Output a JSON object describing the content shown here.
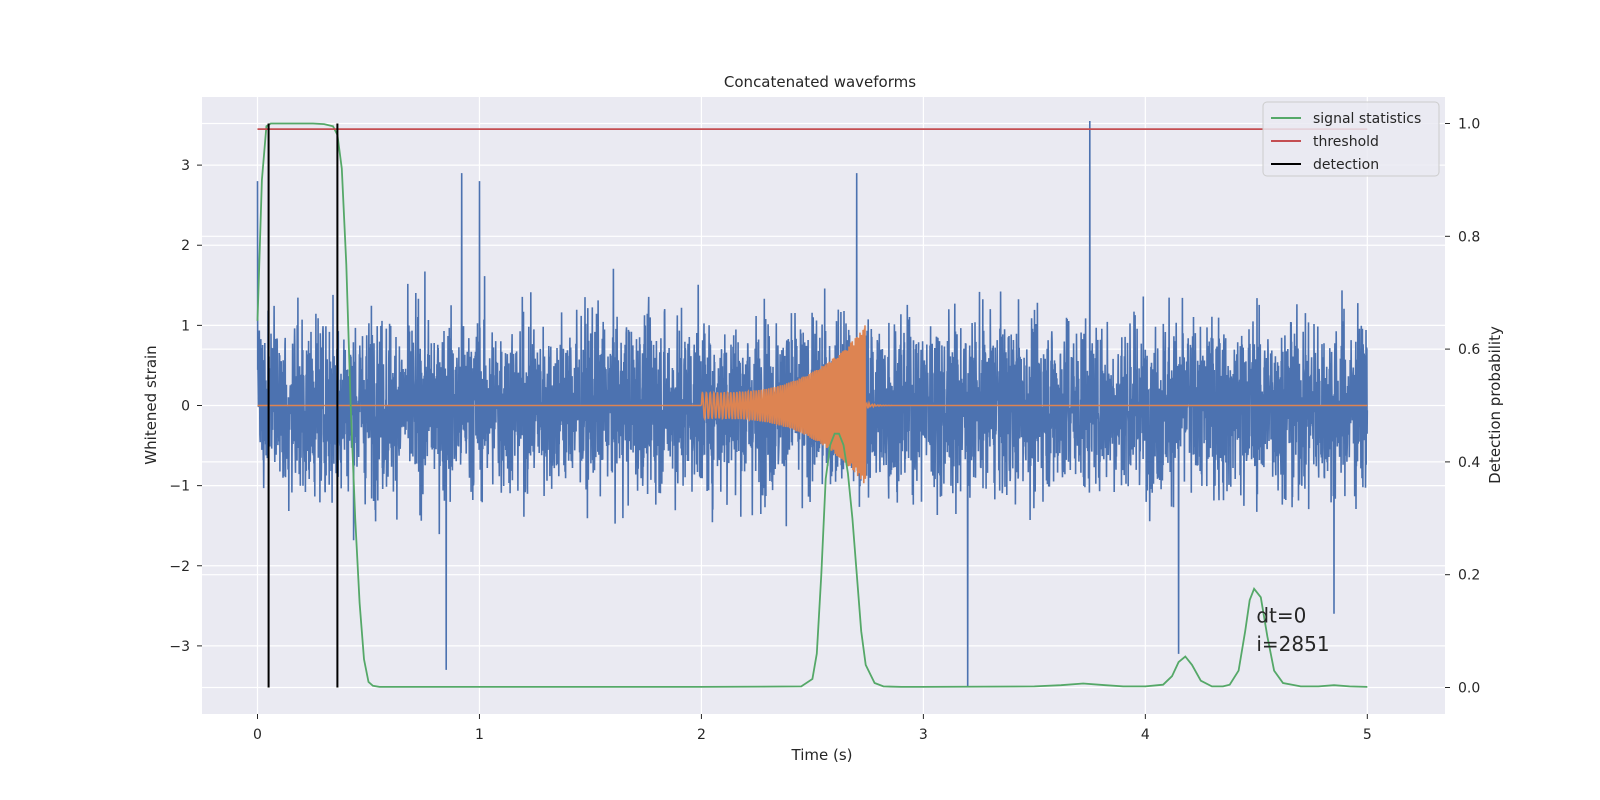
{
  "chart_data": {
    "type": "line",
    "title": "Concatenated waveforms",
    "xlabel": "Time (s)",
    "ylabel_left": "Whitened strain",
    "ylabel_right": "Detection probability",
    "xlim": [
      -0.25,
      5.35
    ],
    "ylim_left": [
      -3.85,
      3.85
    ],
    "ylim_right": [
      -0.047,
      1.047
    ],
    "x_ticks": [
      0,
      1,
      2,
      3,
      4,
      5
    ],
    "y_left_ticks": [
      -3,
      -2,
      -1,
      0,
      1,
      2,
      3
    ],
    "y_right_ticks": [
      0.0,
      0.2,
      0.4,
      0.6,
      0.8,
      1.0
    ],
    "y_right_tick_labels": [
      "0.0",
      "0.2",
      "0.4",
      "0.6",
      "0.8",
      "1.0"
    ],
    "grid": true,
    "legend_position": "top-right",
    "colors": {
      "background": "#eaeaf2",
      "grid": "#ffffff",
      "noise": "#4c72b0",
      "signal": "#dd8452",
      "statistics": "#55a868",
      "threshold": "#c44e52",
      "detection": "#000000"
    },
    "series": [
      {
        "name": "",
        "role": "whitened strain noise",
        "axis": "left",
        "t_range": [
          0,
          5
        ],
        "typical_amplitude": 1.5,
        "peaks": [
          {
            "t": 0.0,
            "value": 2.8
          },
          {
            "t": 0.92,
            "value": 2.9
          },
          {
            "t": 0.85,
            "value": -3.3
          },
          {
            "t": 1.0,
            "value": 2.8
          },
          {
            "t": 2.7,
            "value": 2.9
          },
          {
            "t": 3.2,
            "value": -3.5
          },
          {
            "t": 3.75,
            "value": 3.55
          },
          {
            "t": 4.85,
            "value": -2.6
          },
          {
            "t": 4.15,
            "value": -3.1
          }
        ]
      },
      {
        "name": "",
        "role": "injected chirp signal",
        "axis": "left",
        "t_start": 2.0,
        "t_end": 2.74,
        "start_amplitude": 0.16,
        "peak_amplitude": 1.0,
        "peak_min": -0.9
      },
      {
        "name": "signal statistics",
        "axis": "right",
        "x": [
          0.0,
          0.02,
          0.04,
          0.06,
          0.08,
          0.1,
          0.15,
          0.2,
          0.25,
          0.3,
          0.34,
          0.36,
          0.38,
          0.4,
          0.42,
          0.44,
          0.46,
          0.48,
          0.5,
          0.52,
          0.55,
          0.6,
          1.0,
          2.0,
          2.45,
          2.5,
          2.52,
          2.54,
          2.56,
          2.58,
          2.6,
          2.62,
          2.64,
          2.66,
          2.68,
          2.7,
          2.72,
          2.74,
          2.78,
          2.82,
          2.9,
          3.0,
          3.5,
          3.62,
          3.72,
          3.82,
          3.9,
          4.0,
          4.08,
          4.12,
          4.15,
          4.18,
          4.21,
          4.25,
          4.3,
          4.35,
          4.38,
          4.42,
          4.45,
          4.47,
          4.49,
          4.52,
          4.55,
          4.58,
          4.62,
          4.7,
          4.78,
          4.85,
          4.92,
          5.0
        ],
        "y": [
          0.65,
          0.9,
          0.995,
          1.0,
          1.0,
          1.0,
          1.0,
          1.0,
          1.0,
          0.999,
          0.995,
          0.98,
          0.92,
          0.75,
          0.5,
          0.3,
          0.15,
          0.05,
          0.01,
          0.003,
          0.001,
          0.001,
          0.001,
          0.001,
          0.002,
          0.015,
          0.06,
          0.2,
          0.37,
          0.43,
          0.45,
          0.45,
          0.43,
          0.38,
          0.3,
          0.2,
          0.1,
          0.04,
          0.008,
          0.002,
          0.001,
          0.001,
          0.002,
          0.004,
          0.007,
          0.004,
          0.002,
          0.002,
          0.005,
          0.02,
          0.045,
          0.055,
          0.04,
          0.012,
          0.002,
          0.002,
          0.005,
          0.03,
          0.1,
          0.155,
          0.175,
          0.16,
          0.09,
          0.03,
          0.008,
          0.002,
          0.002,
          0.004,
          0.002,
          0.001
        ]
      },
      {
        "name": "threshold",
        "axis": "right",
        "x": [
          0,
          5
        ],
        "y": [
          0.99,
          0.99
        ]
      },
      {
        "name": "detection",
        "axis": "right",
        "lines_at": [
          0.05,
          0.36
        ],
        "y_range": [
          0.0,
          1.0
        ]
      }
    ],
    "annotations": [
      {
        "text": "dt=0",
        "t": 4.5,
        "y_right": 0.115
      },
      {
        "text": "i=2851",
        "t": 4.5,
        "y_right": 0.065
      }
    ]
  }
}
